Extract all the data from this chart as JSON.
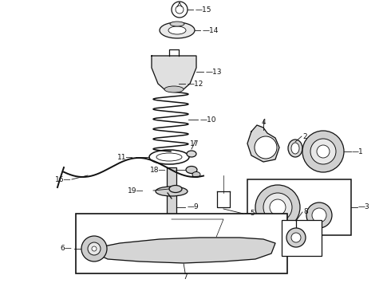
{
  "background_color": "#ffffff",
  "fig_width": 4.9,
  "fig_height": 3.6,
  "dpi": 100,
  "col": "#111111",
  "col_gray": "#888888",
  "lw_main": 0.9,
  "lw_thick": 1.4
}
